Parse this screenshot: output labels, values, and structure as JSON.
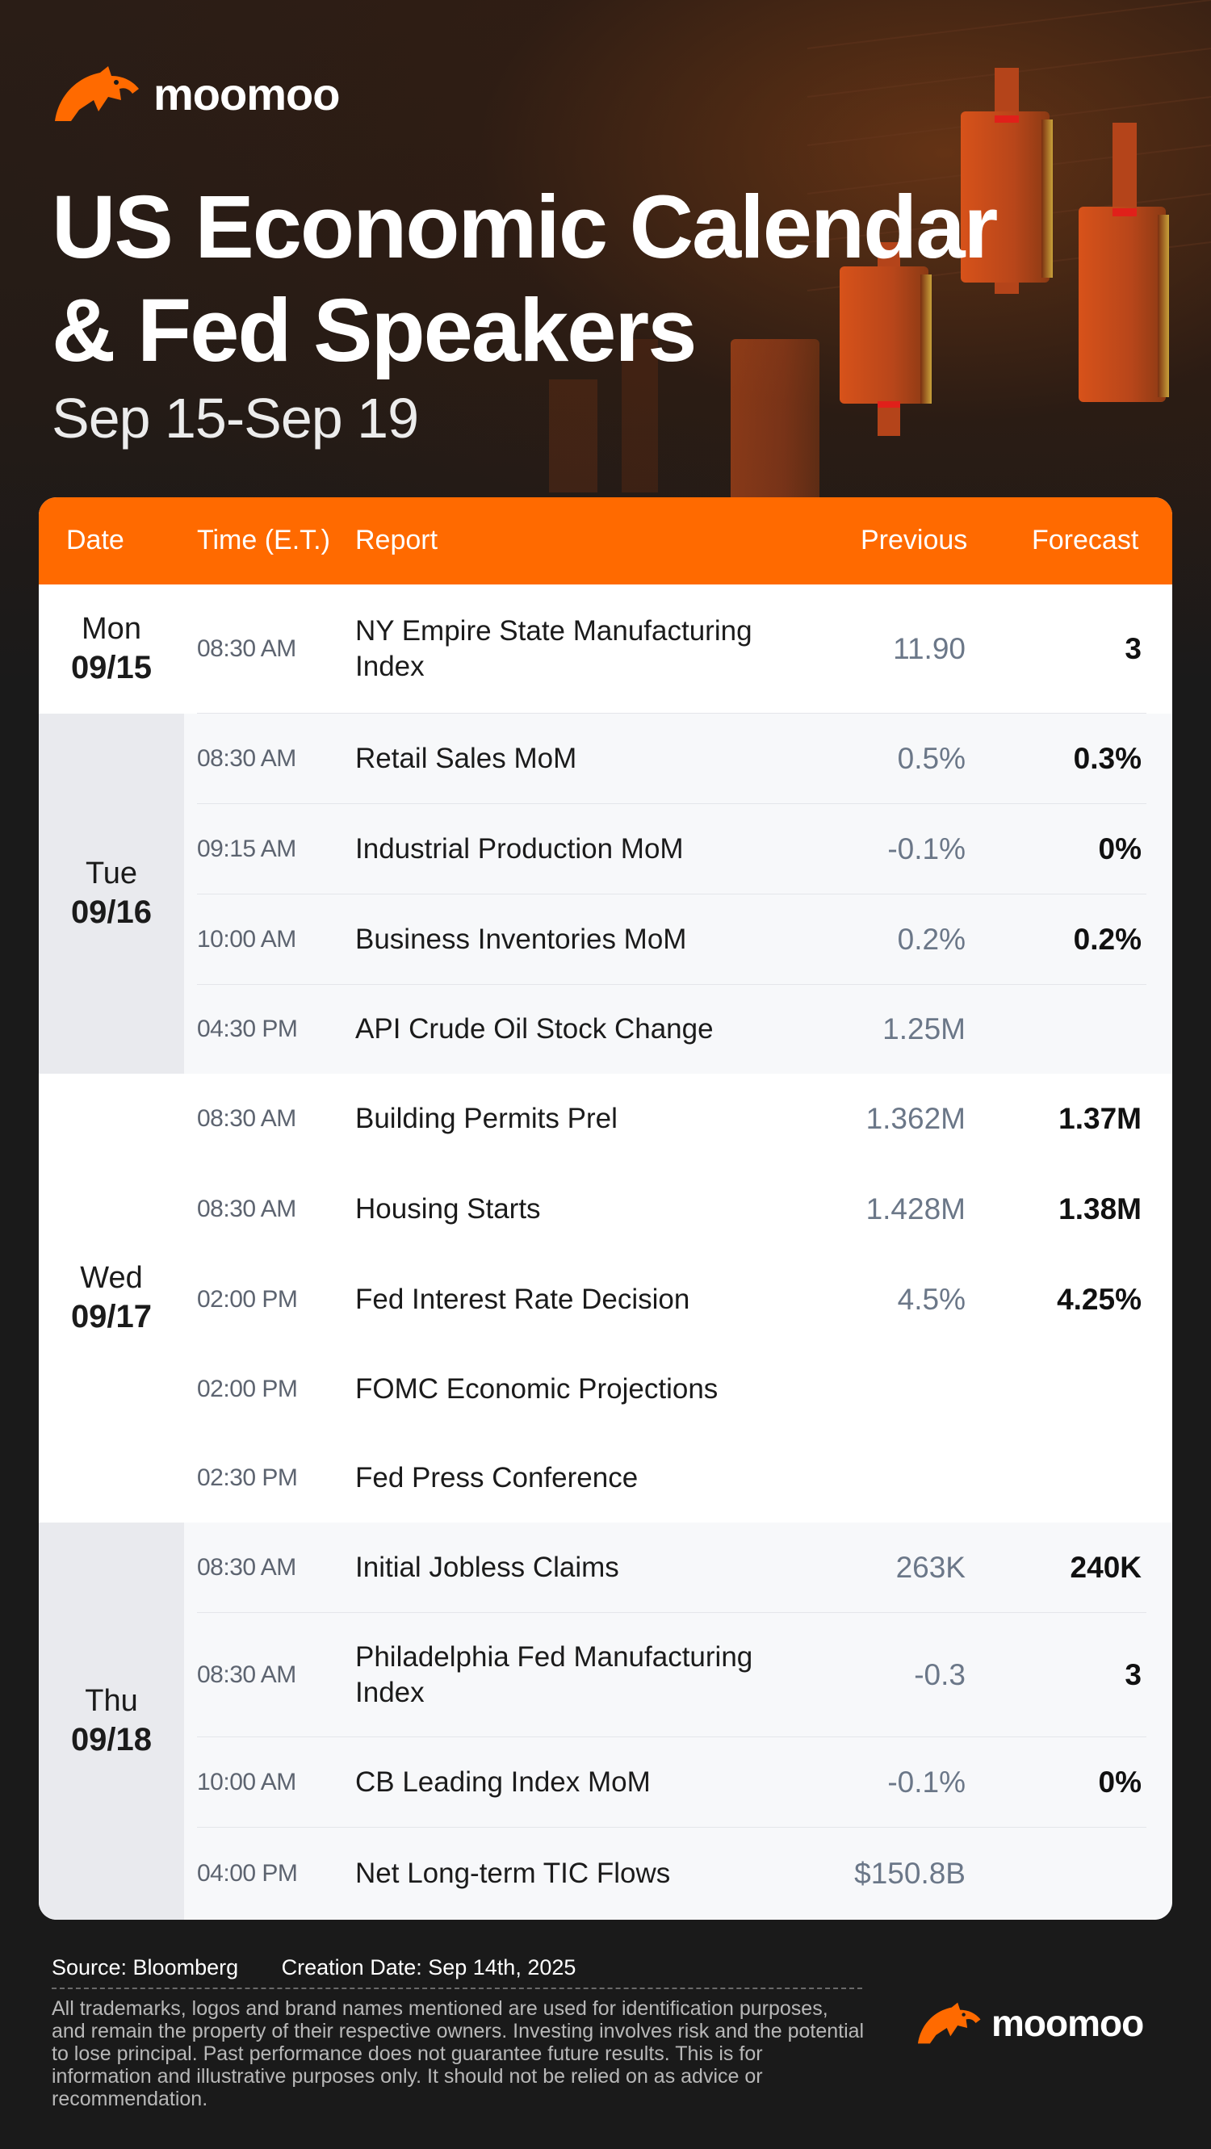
{
  "brand": {
    "name": "moomoo"
  },
  "header": {
    "title_line1": "US Economic Calendar",
    "title_line2": "& Fed Speakers",
    "subtitle": "Sep 15-Sep 19"
  },
  "table": {
    "columns": {
      "date": "Date",
      "time": "Time (E.T.)",
      "report": "Report",
      "previous": "Previous",
      "forecast": "Forecast"
    },
    "groups": [
      {
        "day": "Mon",
        "date": "09/15",
        "rows": [
          {
            "time": "08:30 AM",
            "report": "NY Empire State Manufacturing Index",
            "previous": "11.90",
            "forecast": "3"
          }
        ]
      },
      {
        "day": "Tue",
        "date": "09/16",
        "rows": [
          {
            "time": "08:30 AM",
            "report": "Retail Sales MoM",
            "previous": "0.5%",
            "forecast": "0.3%"
          },
          {
            "time": "09:15 AM",
            "report": "Industrial Production MoM",
            "previous": "-0.1%",
            "forecast": "0%"
          },
          {
            "time": "10:00 AM",
            "report": "Business Inventories MoM",
            "previous": "0.2%",
            "forecast": "0.2%"
          },
          {
            "time": "04:30 PM",
            "report": "API Crude Oil Stock Change",
            "previous": "1.25M",
            "forecast": ""
          }
        ]
      },
      {
        "day": "Wed",
        "date": "09/17",
        "rows": [
          {
            "time": "08:30 AM",
            "report": "Building Permits Prel",
            "previous": "1.362M",
            "forecast": "1.37M"
          },
          {
            "time": "08:30 AM",
            "report": "Housing Starts",
            "previous": "1.428M",
            "forecast": "1.38M"
          },
          {
            "time": "02:00 PM",
            "report": "Fed Interest Rate Decision",
            "previous": "4.5%",
            "forecast": "4.25%"
          },
          {
            "time": "02:00 PM",
            "report": "FOMC Economic Projections",
            "previous": "",
            "forecast": ""
          },
          {
            "time": "02:30 PM",
            "report": "Fed Press Conference",
            "previous": "",
            "forecast": ""
          }
        ]
      },
      {
        "day": "Thu",
        "date": "09/18",
        "rows": [
          {
            "time": "08:30 AM",
            "report": "Initial Jobless Claims",
            "previous": "263K",
            "forecast": "240K"
          },
          {
            "time": "08:30 AM",
            "report": "Philadelphia Fed Manufacturing Index",
            "previous": "-0.3",
            "forecast": "3"
          },
          {
            "time": "10:00 AM",
            "report": "CB Leading Index MoM",
            "previous": "-0.1%",
            "forecast": "0%"
          },
          {
            "time": "04:00 PM",
            "report": "Net Long-term TIC Flows",
            "previous": "$150.8B",
            "forecast": ""
          }
        ]
      }
    ]
  },
  "footer": {
    "source": "Source: Bloomberg",
    "creation_date": "Creation Date: Sep 14th, 2025",
    "disclaimer": "All trademarks, logos and brand names mentioned are used for identification purposes, and remain the property of their respective owners. Investing involves risk and the potential to lose principal. Past performance does not guarantee future results. This is for information and illustrative purposes only. It should not be relied on as advice or recommendation."
  },
  "colors": {
    "accent": "#ff6a00",
    "background": "#1a1a1a",
    "date_column_alt": "#e9eaee"
  }
}
